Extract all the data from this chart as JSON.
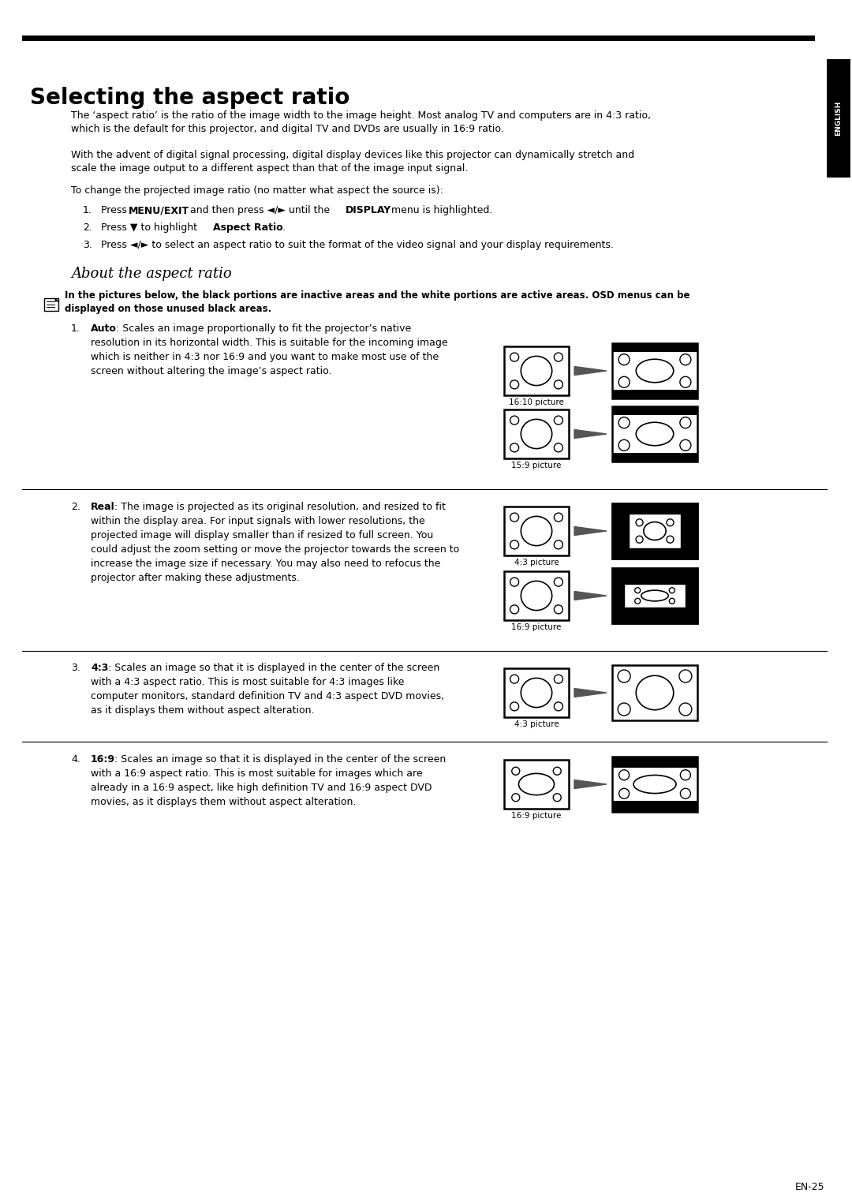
{
  "title": "Selecting the aspect ratio",
  "bg_color": "#ffffff",
  "text_color": "#000000",
  "page_number": "EN-25",
  "intro_text_1": "The ‘aspect ratio’ is the ratio of the image width to the image height. Most analog TV and computers are in 4:3 ratio,\nwhich is the default for this projector, and digital TV and DVDs are usually in 16:9 ratio.",
  "intro_text_2": "With the advent of digital signal processing, digital display devices like this projector can dynamically stretch and\nscale the image output to a different aspect than that of the image input signal.",
  "intro_text_3": "To change the projected image ratio (no matter what aspect the source is):",
  "subtitle": "About the aspect ratio",
  "note_line1": "In the pictures below, the black portions are inactive areas and the white portions are active areas. OSD menus can be",
  "note_line2": "displayed on those unused black areas.",
  "sections": [
    {
      "num": "1.",
      "bold": "Auto",
      "rest": ": Scales an image proportionally to fit the projector’s native\nresolution in its horizontal width. This is suitable for the incoming image\nwhich is neither in 4:3 nor 16:9 and you want to make most use of the\nscreen without altering the image’s aspect ratio."
    },
    {
      "num": "2.",
      "bold": "Real",
      "rest": ": The image is projected as its original resolution, and resized to fit\nwithin the display area. For input signals with lower resolutions, the\nprojected image will display smaller than if resized to full screen. You\ncould adjust the zoom setting or move the projector towards the screen to\nincrease the image size if necessary. You may also need to refocus the\nprojector after making these adjustments."
    },
    {
      "num": "3.",
      "bold": "4:3",
      "rest": ": Scales an image so that it is displayed in the center of the screen\nwith a 4:3 aspect ratio. This is most suitable for 4:3 images like\ncomputer monitors, standard definition TV and 4:3 aspect DVD movies,\nas it displays them without aspect alteration."
    },
    {
      "num": "4.",
      "bold": "16:9",
      "rest": ": Scales an image so that it is displayed in the center of the screen\nwith a 16:9 aspect ratio. This is most suitable for images which are\nalready in a 16:9 aspect, like high definition TV and 16:9 aspect DVD\nmovies, as it displays them without aspect alteration."
    }
  ]
}
